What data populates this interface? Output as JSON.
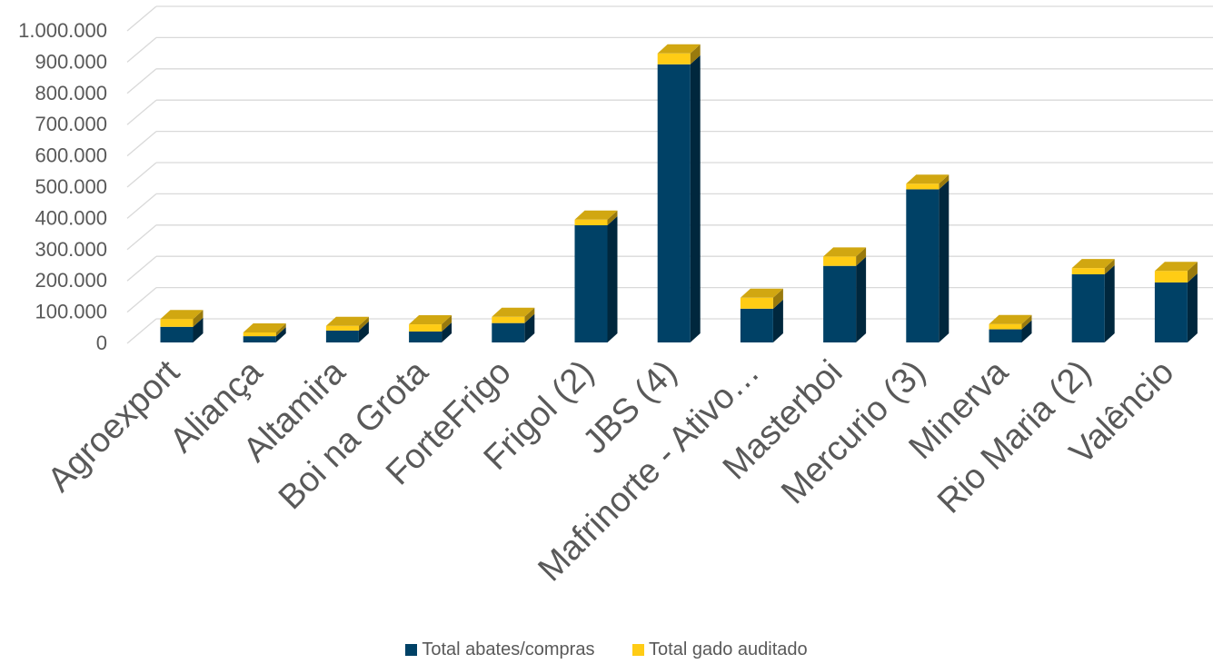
{
  "chart_data": {
    "type": "bar",
    "stacked": true,
    "three_d": true,
    "categories": [
      "Agroexport",
      "Aliança",
      "Altamira",
      "Boi na Grota",
      "ForteFrigo",
      "Frigol (2)",
      "JBS (4)",
      "Mafrinorte - Ativo…",
      "Masterboi",
      "Mercurio (3)",
      "Minerva",
      "Rio Maria (2)",
      "Valêncio"
    ],
    "series": [
      {
        "name": "Total abates/compras",
        "color": "#004166",
        "values": [
          50000,
          20000,
          38000,
          35000,
          62000,
          375000,
          890000,
          108000,
          245000,
          490000,
          42000,
          218000,
          192000
        ]
      },
      {
        "name": "Total gado auditado",
        "color": "#FFCC15",
        "values": [
          25000,
          12000,
          15000,
          23000,
          20000,
          18000,
          35000,
          35000,
          30000,
          18000,
          17000,
          20000,
          37000
        ]
      }
    ],
    "y_ticks": [
      "0",
      "100.000",
      "200.000",
      "300.000",
      "400.000",
      "500.000",
      "600.000",
      "700.000",
      "800.000",
      "900.000",
      "1.000.000"
    ],
    "ylim": [
      0,
      1000000
    ],
    "grid": true,
    "legend_position": "bottom",
    "title": "",
    "xlabel": "",
    "ylabel": ""
  }
}
